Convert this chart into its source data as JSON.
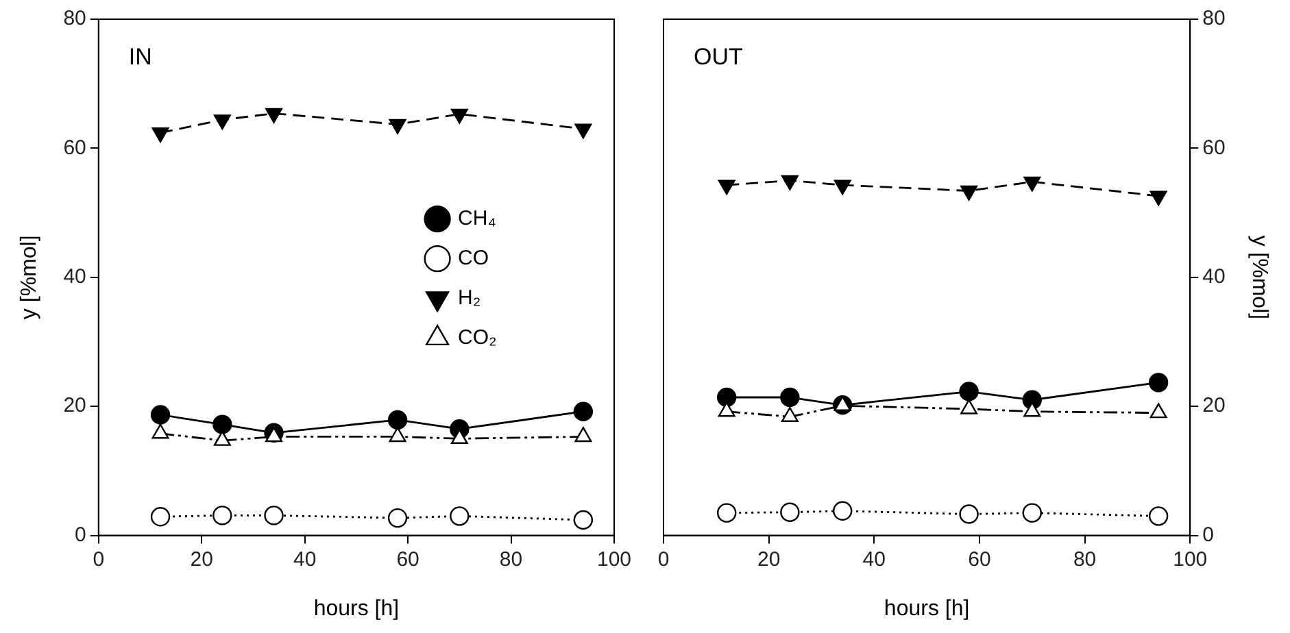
{
  "chart_data": [
    {
      "type": "line",
      "title": "IN",
      "xlabel": "hours [h]",
      "ylabel": "y [%mol]",
      "x": [
        12,
        24,
        34,
        58,
        70,
        94
      ],
      "xlim": [
        0,
        100
      ],
      "xticks": [
        0,
        20,
        40,
        60,
        80,
        100
      ],
      "ylim": [
        0,
        80
      ],
      "yticks": [
        0,
        20,
        40,
        60,
        80
      ],
      "grid": false,
      "legend": "right",
      "series": [
        {
          "name": "CH₄",
          "color": "#000000",
          "marker": "circle",
          "line_style": "solid",
          "values": [
            18.7,
            17.2,
            15.9,
            17.9,
            16.5,
            19.2
          ]
        },
        {
          "name": "CO",
          "color": "#000000",
          "marker": "circle-open",
          "line_style": "dotted",
          "values": [
            2.9,
            3.1,
            3.1,
            2.7,
            3.0,
            2.4
          ]
        },
        {
          "name": "H₂",
          "color": "#000000",
          "marker": "triangle-down",
          "line_style": "dashed",
          "values": [
            62.4,
            64.4,
            65.4,
            63.7,
            65.3,
            63.0
          ]
        },
        {
          "name": "CO₂",
          "color": "#000000",
          "marker": "triangle-open",
          "line_style": "dashdotdot",
          "values": [
            15.8,
            14.7,
            15.3,
            15.3,
            15.0,
            15.3
          ]
        }
      ]
    },
    {
      "type": "line",
      "title": "OUT",
      "xlabel": "hours [h]",
      "y2label": "y [%mol]",
      "x": [
        12,
        24,
        34,
        58,
        70,
        94
      ],
      "xlim": [
        0,
        100
      ],
      "xticks": [
        0,
        20,
        40,
        60,
        80,
        100
      ],
      "y2lim": [
        0,
        80
      ],
      "y2ticks": [
        0,
        20,
        40,
        60,
        80
      ],
      "grid": false,
      "series": [
        {
          "axis": "y2",
          "color": "#000000",
          "marker": "circle",
          "line_style": "solid",
          "values": [
            21.4,
            21.4,
            20.2,
            22.3,
            21.0,
            23.7
          ]
        },
        {
          "axis": "y2",
          "color": "#000000",
          "marker": "circle-open",
          "line_style": "dotted",
          "values": [
            3.5,
            3.6,
            3.8,
            3.3,
            3.5,
            3.0
          ]
        },
        {
          "axis": "y2",
          "color": "#000000",
          "marker": "triangle-down",
          "line_style": "dashed",
          "values": [
            54.3,
            55.0,
            54.3,
            53.4,
            54.8,
            52.6
          ]
        },
        {
          "axis": "y2",
          "color": "#000000",
          "marker": "triangle-open",
          "line_style": "dashdotdot",
          "values": [
            19.2,
            18.4,
            20.1,
            19.6,
            19.2,
            19.0
          ]
        }
      ]
    }
  ]
}
